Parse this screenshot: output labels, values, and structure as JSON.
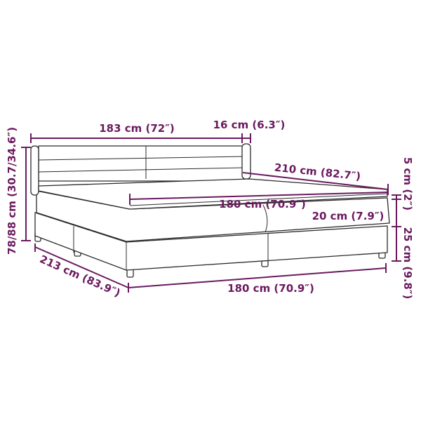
{
  "colors": {
    "dimension": "#6b1a5e",
    "outline": "#2b2b2b"
  },
  "labels": {
    "headboard_width": "183 cm (72″)",
    "headboard_depth": "16 cm (6.3″)",
    "mattress_length": "210 cm (82.7″)",
    "mattress_width": "180 cm (70.9″)",
    "mattress_height": "20 cm (7.9″)",
    "topper_height": "5 cm (2″)",
    "base_height": "25 cm (9.8″)",
    "total_height": "78/88 cm (30.7/34.6″)",
    "total_length": "213 cm (83.9″)",
    "total_width": "180 cm (70.9″)"
  }
}
